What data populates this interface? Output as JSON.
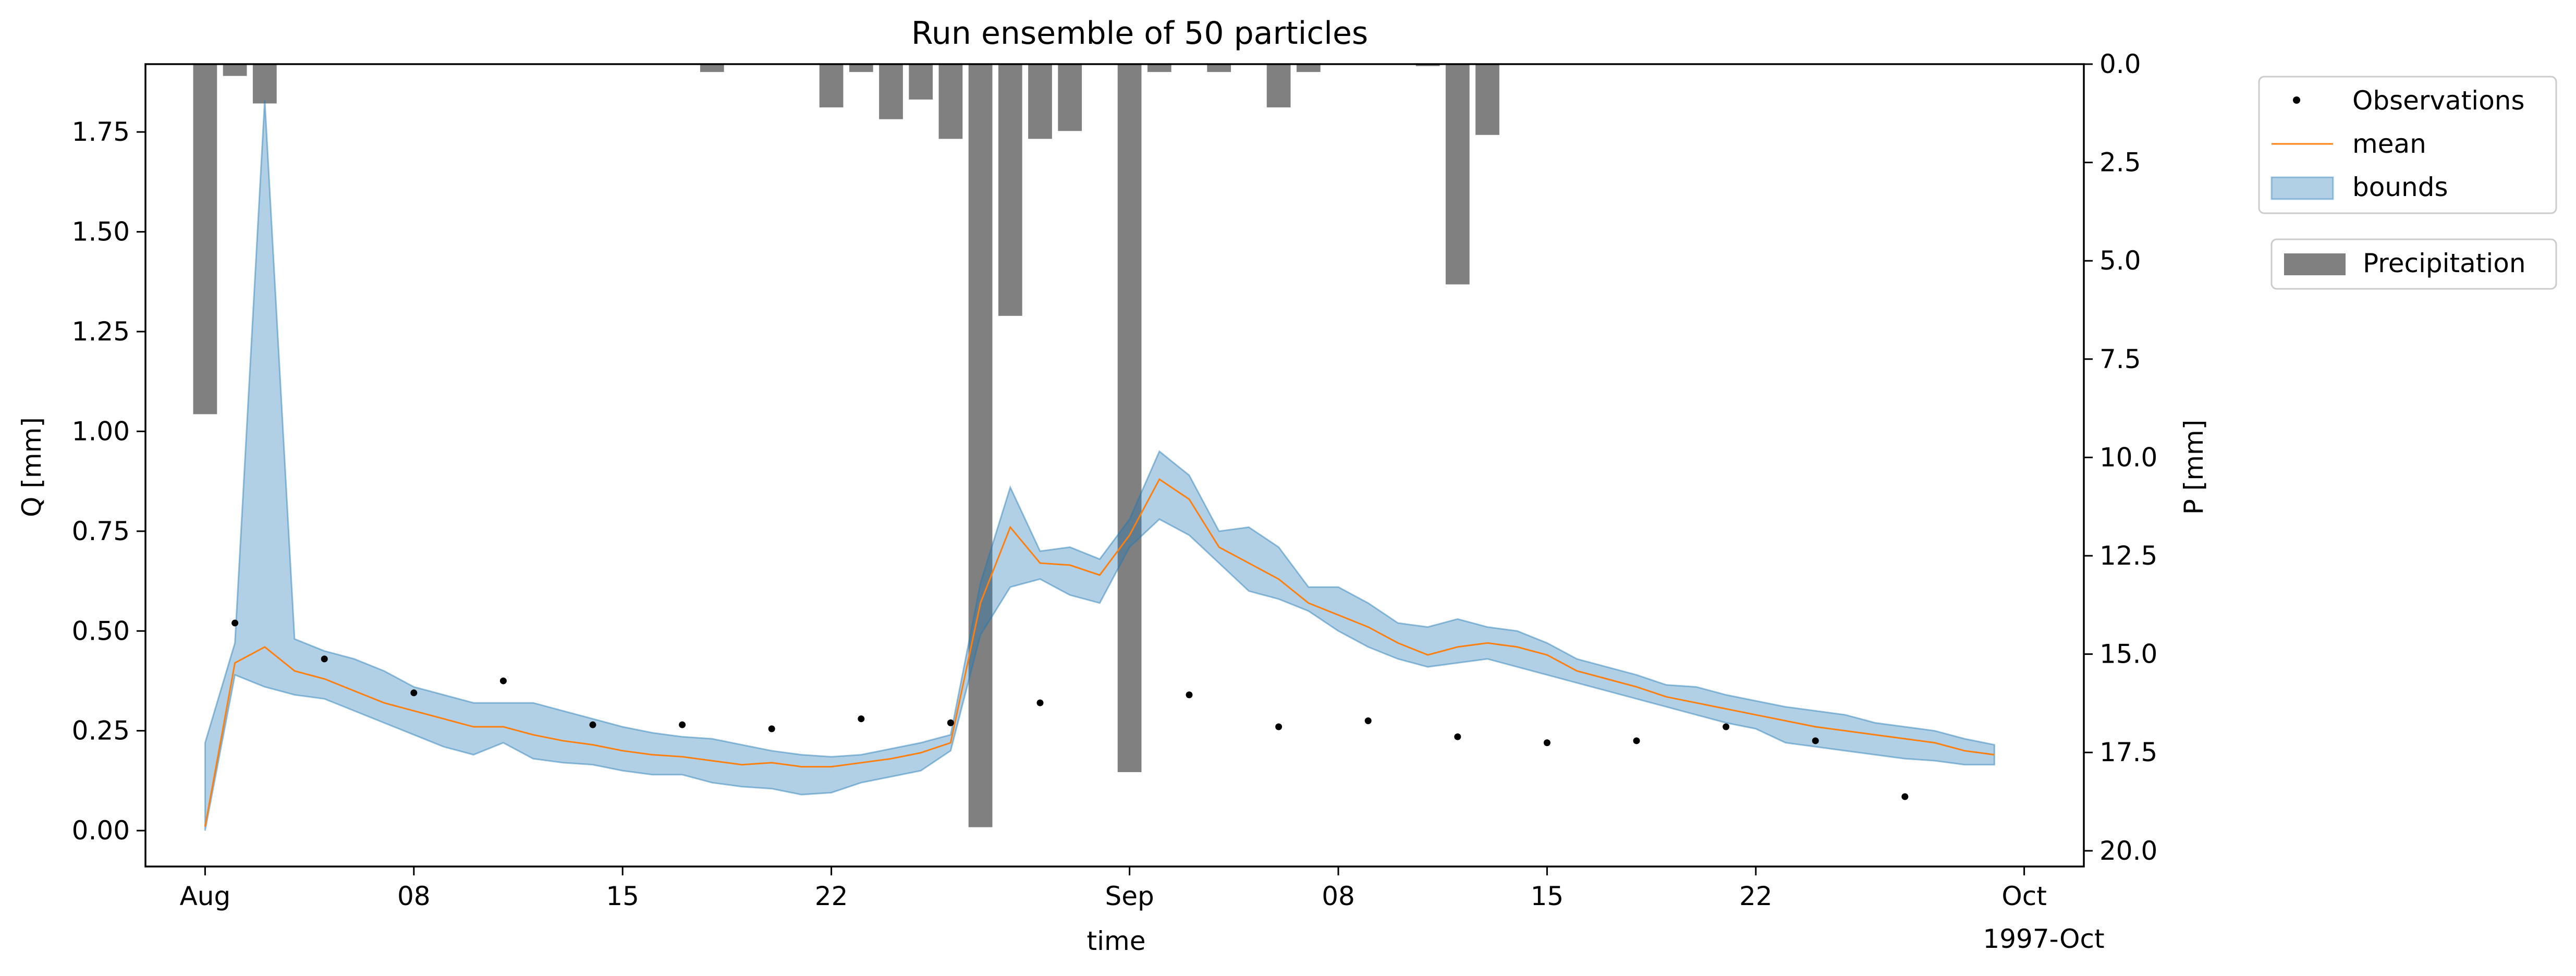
{
  "chart_data": {
    "type": "line",
    "title": "Run ensemble of 50 particles",
    "xlabel": "time",
    "ylabel": "Q [mm]",
    "y2label": "P [mm]",
    "xlim": [
      "1997-07-30",
      "1997-10-03"
    ],
    "ylim": [
      -0.09,
      1.92
    ],
    "y2lim": [
      20.4,
      0.0
    ],
    "y2_inverted": true,
    "grid": false,
    "x_ticks": [
      {
        "date": "1997-08-01",
        "label": "Aug"
      },
      {
        "date": "1997-08-08",
        "label": "08"
      },
      {
        "date": "1997-08-15",
        "label": "15"
      },
      {
        "date": "1997-08-22",
        "label": "22"
      },
      {
        "date": "1997-09-01",
        "label": "Sep"
      },
      {
        "date": "1997-09-08",
        "label": "08"
      },
      {
        "date": "1997-09-15",
        "label": "15"
      },
      {
        "date": "1997-09-22",
        "label": "22"
      },
      {
        "date": "1997-10-01",
        "label": "Oct"
      }
    ],
    "x_offset_label": "1997-Oct",
    "y_ticks": [
      0.0,
      0.25,
      0.5,
      0.75,
      1.0,
      1.25,
      1.5,
      1.75
    ],
    "y_tick_labels": [
      "0.00",
      "0.25",
      "0.50",
      "0.75",
      "1.00",
      "1.25",
      "1.50",
      "1.75"
    ],
    "y2_ticks": [
      0,
      2.5,
      5,
      7.5,
      10,
      12.5,
      15,
      17.5,
      20
    ],
    "y2_tick_labels": [
      "0.0",
      "2.5",
      "5.0",
      "7.5",
      "10.0",
      "12.5",
      "15.0",
      "17.5",
      "20.0"
    ],
    "colors": {
      "observations": "#000000",
      "mean": "#ff7f0e",
      "bounds": "#1f77b4",
      "precipitation": "#808080"
    },
    "legend": {
      "placement": "outside-right",
      "entries": [
        "Observations",
        "mean",
        "bounds"
      ],
      "precip_entry": "Precipitation"
    },
    "series": [
      {
        "name": "mean",
        "kind": "line",
        "x": [
          "1997-08-01",
          "1997-08-02",
          "1997-08-03",
          "1997-08-04",
          "1997-08-05",
          "1997-08-06",
          "1997-08-07",
          "1997-08-08",
          "1997-08-09",
          "1997-08-10",
          "1997-08-11",
          "1997-08-12",
          "1997-08-13",
          "1997-08-14",
          "1997-08-15",
          "1997-08-16",
          "1997-08-17",
          "1997-08-18",
          "1997-08-19",
          "1997-08-20",
          "1997-08-21",
          "1997-08-22",
          "1997-08-23",
          "1997-08-24",
          "1997-08-25",
          "1997-08-26",
          "1997-08-27",
          "1997-08-28",
          "1997-08-29",
          "1997-08-30",
          "1997-08-31",
          "1997-09-01",
          "1997-09-02",
          "1997-09-03",
          "1997-09-04",
          "1997-09-05",
          "1997-09-06",
          "1997-09-07",
          "1997-09-08",
          "1997-09-09",
          "1997-09-10",
          "1997-09-11",
          "1997-09-12",
          "1997-09-13",
          "1997-09-14",
          "1997-09-15",
          "1997-09-16",
          "1997-09-17",
          "1997-09-18",
          "1997-09-19",
          "1997-09-20",
          "1997-09-21",
          "1997-09-22",
          "1997-09-23",
          "1997-09-24",
          "1997-09-25",
          "1997-09-26",
          "1997-09-27",
          "1997-09-28",
          "1997-09-29",
          "1997-09-30"
        ],
        "values": [
          0.01,
          0.42,
          0.46,
          0.4,
          0.38,
          0.35,
          0.32,
          0.3,
          0.28,
          0.26,
          0.26,
          0.24,
          0.225,
          0.215,
          0.2,
          0.19,
          0.185,
          0.175,
          0.165,
          0.17,
          0.16,
          0.16,
          0.17,
          0.18,
          0.195,
          0.22,
          0.57,
          0.76,
          0.67,
          0.665,
          0.64,
          0.74,
          0.88,
          0.83,
          0.71,
          0.67,
          0.63,
          0.57,
          0.54,
          0.51,
          0.47,
          0.44,
          0.46,
          0.47,
          0.46,
          0.44,
          0.4,
          0.38,
          0.36,
          0.335,
          0.32,
          0.305,
          0.29,
          0.275,
          0.26,
          0.25,
          0.24,
          0.23,
          0.22,
          0.2,
          0.19
        ]
      },
      {
        "name": "bounds",
        "kind": "band",
        "x": [
          "1997-08-01",
          "1997-08-02",
          "1997-08-03",
          "1997-08-04",
          "1997-08-05",
          "1997-08-06",
          "1997-08-07",
          "1997-08-08",
          "1997-08-09",
          "1997-08-10",
          "1997-08-11",
          "1997-08-12",
          "1997-08-13",
          "1997-08-14",
          "1997-08-15",
          "1997-08-16",
          "1997-08-17",
          "1997-08-18",
          "1997-08-19",
          "1997-08-20",
          "1997-08-21",
          "1997-08-22",
          "1997-08-23",
          "1997-08-24",
          "1997-08-25",
          "1997-08-26",
          "1997-08-27",
          "1997-08-28",
          "1997-08-29",
          "1997-08-30",
          "1997-08-31",
          "1997-09-01",
          "1997-09-02",
          "1997-09-03",
          "1997-09-04",
          "1997-09-05",
          "1997-09-06",
          "1997-09-07",
          "1997-09-08",
          "1997-09-09",
          "1997-09-10",
          "1997-09-11",
          "1997-09-12",
          "1997-09-13",
          "1997-09-14",
          "1997-09-15",
          "1997-09-16",
          "1997-09-17",
          "1997-09-18",
          "1997-09-19",
          "1997-09-20",
          "1997-09-21",
          "1997-09-22",
          "1997-09-23",
          "1997-09-24",
          "1997-09-25",
          "1997-09-26",
          "1997-09-27",
          "1997-09-28",
          "1997-09-29",
          "1997-09-30"
        ],
        "lower": [
          0.0,
          0.39,
          0.36,
          0.34,
          0.33,
          0.3,
          0.27,
          0.24,
          0.21,
          0.19,
          0.22,
          0.18,
          0.17,
          0.165,
          0.15,
          0.14,
          0.14,
          0.12,
          0.11,
          0.105,
          0.09,
          0.095,
          0.12,
          0.135,
          0.15,
          0.2,
          0.49,
          0.61,
          0.63,
          0.59,
          0.57,
          0.71,
          0.78,
          0.74,
          0.67,
          0.6,
          0.58,
          0.55,
          0.5,
          0.46,
          0.43,
          0.41,
          0.42,
          0.43,
          0.41,
          0.39,
          0.37,
          0.35,
          0.33,
          0.31,
          0.29,
          0.27,
          0.255,
          0.22,
          0.21,
          0.2,
          0.19,
          0.18,
          0.175,
          0.165,
          0.165
        ],
        "upper": [
          0.22,
          0.47,
          1.83,
          0.48,
          0.45,
          0.43,
          0.4,
          0.36,
          0.34,
          0.32,
          0.32,
          0.32,
          0.3,
          0.28,
          0.26,
          0.245,
          0.235,
          0.23,
          0.215,
          0.2,
          0.19,
          0.185,
          0.19,
          0.205,
          0.22,
          0.24,
          0.62,
          0.86,
          0.7,
          0.71,
          0.68,
          0.78,
          0.95,
          0.89,
          0.75,
          0.76,
          0.71,
          0.61,
          0.61,
          0.57,
          0.52,
          0.51,
          0.53,
          0.51,
          0.5,
          0.47,
          0.43,
          0.41,
          0.39,
          0.365,
          0.36,
          0.34,
          0.325,
          0.31,
          0.3,
          0.29,
          0.27,
          0.26,
          0.25,
          0.23,
          0.215
        ]
      },
      {
        "name": "Observations",
        "kind": "points",
        "x": [
          "1997-08-02",
          "1997-08-05",
          "1997-08-08",
          "1997-08-11",
          "1997-08-14",
          "1997-08-17",
          "1997-08-20",
          "1997-08-23",
          "1997-08-26",
          "1997-08-29",
          "1997-09-03",
          "1997-09-06",
          "1997-09-09",
          "1997-09-12",
          "1997-09-15",
          "1997-09-18",
          "1997-09-21",
          "1997-09-24",
          "1997-09-27"
        ],
        "values": [
          0.52,
          0.43,
          0.345,
          0.375,
          0.265,
          0.265,
          0.255,
          0.28,
          0.27,
          0.32,
          0.34,
          0.26,
          0.275,
          0.235,
          0.22,
          0.225,
          0.26,
          0.225,
          0.085
        ]
      },
      {
        "name": "Precipitation",
        "kind": "bars",
        "axis": "y2",
        "x": [
          "1997-08-01",
          "1997-08-02",
          "1997-08-03",
          "1997-08-18",
          "1997-08-22",
          "1997-08-23",
          "1997-08-24",
          "1997-08-25",
          "1997-08-26",
          "1997-08-27",
          "1997-08-28",
          "1997-08-29",
          "1997-08-30",
          "1997-09-01",
          "1997-09-02",
          "1997-09-04",
          "1997-09-06",
          "1997-09-07",
          "1997-09-11",
          "1997-09-12",
          "1997-09-13"
        ],
        "values": [
          8.9,
          0.3,
          1.0,
          0.2,
          1.1,
          0.2,
          1.4,
          0.9,
          1.9,
          19.4,
          6.4,
          1.9,
          1.7,
          18.0,
          0.2,
          0.2,
          1.1,
          0.2,
          0.05,
          5.6,
          1.8
        ]
      }
    ]
  }
}
